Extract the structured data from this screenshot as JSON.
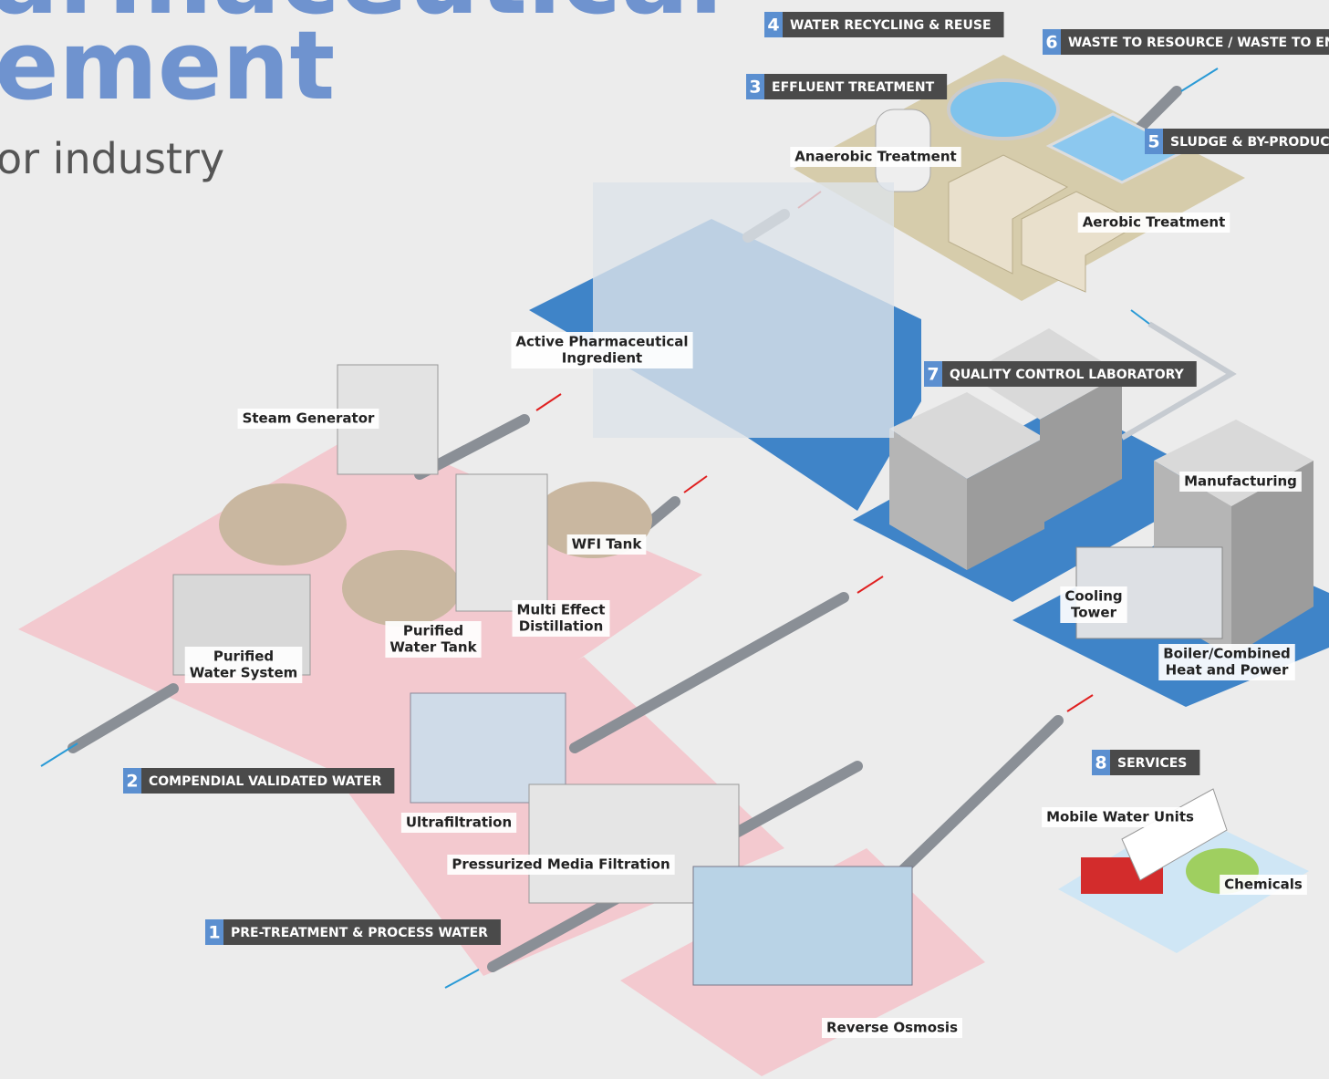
{
  "header": {
    "title_line1": "armaceutical",
    "title_line2": "ement",
    "subtitle": "or industry"
  },
  "sections": [
    {
      "number": "1",
      "text": "PRE-TREATMENT & PROCESS WATER"
    },
    {
      "number": "2",
      "text": "COMPENDIAL VALIDATED WATER"
    },
    {
      "number": "3",
      "text": "EFFLUENT TREATMENT"
    },
    {
      "number": "4",
      "text": "WATER RECYCLING & REUSE"
    },
    {
      "number": "5",
      "text": "SLUDGE & BY-PRODUC"
    },
    {
      "number": "6",
      "text": "WASTE TO RESOURCE / WASTE TO EN"
    },
    {
      "number": "7",
      "text": "QUALITY CONTROL LABORATORY"
    },
    {
      "number": "8",
      "text": "SERVICES"
    }
  ],
  "labels": [
    {
      "lines": [
        "Steam Generator"
      ]
    },
    {
      "lines": [
        "Active Pharmaceutical",
        "Ingredient"
      ]
    },
    {
      "lines": [
        "Anaerobic Treatment"
      ]
    },
    {
      "lines": [
        "Aerobic Treatment"
      ]
    },
    {
      "lines": [
        "WFI Tank"
      ]
    },
    {
      "lines": [
        "Multi Effect",
        "Distillation"
      ]
    },
    {
      "lines": [
        "Purified",
        "Water Tank"
      ]
    },
    {
      "lines": [
        "Purified",
        "Water System"
      ]
    },
    {
      "lines": [
        "Ultrafiltration"
      ]
    },
    {
      "lines": [
        "Pressurized Media Filtration"
      ]
    },
    {
      "lines": [
        "Reverse Osmosis"
      ]
    },
    {
      "lines": [
        "Manufacturing"
      ]
    },
    {
      "lines": [
        "Cooling",
        "Tower"
      ]
    },
    {
      "lines": [
        "Boiler/Combined",
        "Heat and Power"
      ]
    },
    {
      "lines": [
        "Mobile Water Units"
      ]
    },
    {
      "lines": [
        "Chemicals"
      ]
    }
  ]
}
